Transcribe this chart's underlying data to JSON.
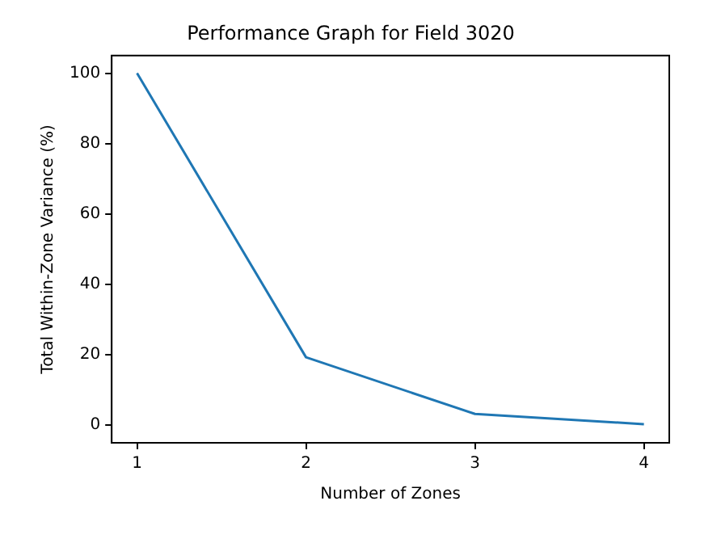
{
  "chart_data": {
    "type": "line",
    "title": "Performance Graph for Field 3020",
    "xlabel": "Number of Zones",
    "ylabel": "Total Within-Zone Variance (%)",
    "x": [
      1,
      2,
      3,
      4
    ],
    "series": [
      {
        "color": "#1f77b4",
        "values": [
          100,
          19.3,
          3.2,
          0.3
        ]
      }
    ],
    "xlim": [
      0.85,
      4.15
    ],
    "xticks": [
      1,
      2,
      3,
      4
    ],
    "ylim": [
      -5,
      105
    ],
    "yticks": [
      0,
      20,
      40,
      60,
      80,
      100
    ],
    "grid": false,
    "legend": false,
    "marker": "none",
    "line_style": "solid"
  }
}
